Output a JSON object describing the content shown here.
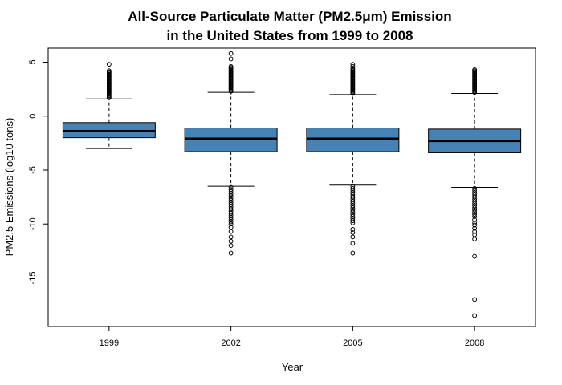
{
  "chart_data": {
    "type": "boxplot",
    "title": [
      "All-Source Particulate Matter (PM2.5μm) Emission",
      "in the United States from 1999 to 2008"
    ],
    "xlabel": "Year",
    "ylabel": "PM2.5 Emissions (log10 tons)",
    "categories": [
      "1999",
      "2002",
      "2005",
      "2008"
    ],
    "ylim": [
      -19.5,
      6.3
    ],
    "yticks": [
      5,
      0,
      -5,
      -10,
      -15
    ],
    "ytick_labels": [
      "5",
      "0",
      "-5",
      "-10",
      "-15"
    ],
    "box_fill": "#4682B4",
    "boxes": [
      {
        "label": "1999",
        "lower_whisker": -3.0,
        "q1": -2.0,
        "median": -1.4,
        "q3": -0.6,
        "upper_whisker": 1.6,
        "outliers": [
          4.8,
          4.2,
          4.1,
          4.0,
          3.9,
          3.8,
          3.7,
          3.6,
          3.5,
          3.4,
          3.3,
          3.2,
          3.1,
          3.0,
          2.9,
          2.8,
          2.7,
          2.6,
          2.5,
          2.4,
          2.3,
          2.2,
          2.1,
          2.0,
          1.9,
          1.8,
          1.7
        ]
      },
      {
        "label": "2002",
        "lower_whisker": -6.5,
        "q1": -3.3,
        "median": -2.1,
        "q3": -1.1,
        "upper_whisker": 2.2,
        "outliers": [
          5.8,
          5.3,
          4.6,
          4.5,
          4.4,
          4.3,
          4.2,
          4.1,
          4.0,
          3.9,
          3.8,
          3.7,
          3.6,
          3.5,
          3.4,
          3.3,
          3.2,
          3.1,
          3.0,
          2.9,
          2.8,
          2.7,
          2.6,
          2.5,
          2.4,
          2.3,
          -6.6,
          -6.8,
          -7.0,
          -7.2,
          -7.4,
          -7.6,
          -7.8,
          -8.0,
          -8.2,
          -8.4,
          -8.6,
          -8.8,
          -9.0,
          -9.2,
          -9.4,
          -9.6,
          -9.8,
          -10.0,
          -10.3,
          -10.7,
          -11.2,
          -11.6,
          -12.0,
          -12.7
        ]
      },
      {
        "label": "2005",
        "lower_whisker": -6.4,
        "q1": -3.3,
        "median": -2.1,
        "q3": -1.1,
        "upper_whisker": 2.0,
        "outliers": [
          4.8,
          4.6,
          4.4,
          4.3,
          4.2,
          4.1,
          4.0,
          3.9,
          3.8,
          3.7,
          3.6,
          3.5,
          3.4,
          3.3,
          3.2,
          3.1,
          3.0,
          2.9,
          2.8,
          2.7,
          2.6,
          2.5,
          2.4,
          2.3,
          2.2,
          2.1,
          -6.5,
          -6.7,
          -6.9,
          -7.1,
          -7.3,
          -7.5,
          -7.7,
          -7.9,
          -8.1,
          -8.3,
          -8.5,
          -8.7,
          -8.9,
          -9.1,
          -9.3,
          -9.5,
          -9.7,
          -9.9,
          -10.5,
          -10.8,
          -11.2,
          -11.8,
          -12.7
        ]
      },
      {
        "label": "2008",
        "lower_whisker": -6.6,
        "q1": -3.4,
        "median": -2.3,
        "q3": -1.2,
        "upper_whisker": 2.1,
        "outliers": [
          4.3,
          4.2,
          4.1,
          4.0,
          3.9,
          3.8,
          3.7,
          3.6,
          3.5,
          3.4,
          3.3,
          3.2,
          3.1,
          3.0,
          2.9,
          2.8,
          2.7,
          2.6,
          2.5,
          2.4,
          2.3,
          2.2,
          -6.7,
          -6.9,
          -7.1,
          -7.3,
          -7.5,
          -7.7,
          -7.9,
          -8.1,
          -8.3,
          -8.5,
          -8.7,
          -8.9,
          -9.1,
          -9.3,
          -9.6,
          -9.9,
          -10.1,
          -10.4,
          -10.7,
          -11.0,
          -11.4,
          -13.0,
          -17.0,
          -18.5
        ]
      }
    ]
  }
}
